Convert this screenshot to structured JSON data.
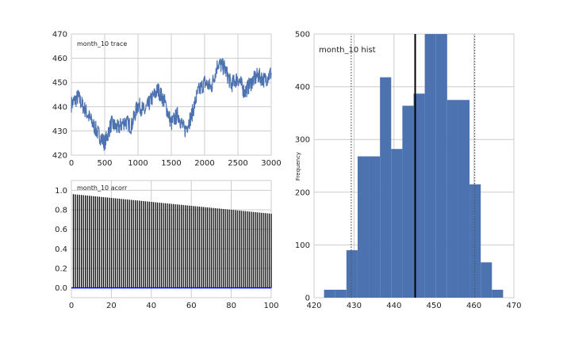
{
  "figure": {
    "background": "#ffffff",
    "grid_color": "#cccccc",
    "frame_color": "#cccccc",
    "series_color": "#4c72b0"
  },
  "chart_data": [
    {
      "id": "trace",
      "type": "line",
      "title": "month_10 trace",
      "xlim": [
        0,
        3000
      ],
      "ylim": [
        420,
        470
      ],
      "xticks": [
        "0",
        "500",
        "1000",
        "1500",
        "2000",
        "2500",
        "3000"
      ],
      "yticks": [
        "420",
        "430",
        "440",
        "450",
        "460",
        "470"
      ],
      "grid": true,
      "color": "#4c72b0",
      "x": [
        0,
        100,
        200,
        300,
        400,
        500,
        600,
        700,
        800,
        900,
        1000,
        1100,
        1200,
        1300,
        1400,
        1500,
        1600,
        1700,
        1800,
        1900,
        2000,
        2100,
        2200,
        2300,
        2400,
        2500,
        2600,
        2700,
        2800,
        2900,
        3000
      ],
      "y": [
        441,
        444,
        439,
        434,
        429,
        425,
        433,
        431,
        434,
        432,
        441,
        438,
        443,
        447,
        442,
        433,
        437,
        430,
        436,
        446,
        450,
        448,
        458,
        456,
        449,
        452,
        446,
        450,
        453,
        451,
        454
      ]
    },
    {
      "id": "acorr",
      "type": "bar",
      "title": "month_10 acorr",
      "xlim": [
        0,
        100
      ],
      "ylim": [
        -0.1,
        1.1
      ],
      "xticks": [
        "0",
        "20",
        "40",
        "60",
        "80",
        "100"
      ],
      "yticks": [
        "0.0",
        "0.2",
        "0.4",
        "0.6",
        "0.8",
        "1.0"
      ],
      "grid": true,
      "bar_color": "#000000",
      "baseline_color": "#0000ff",
      "lags_start": 1,
      "lags_end": 100,
      "acf_first": 0.96,
      "acf_last": 0.76
    },
    {
      "id": "hist",
      "type": "bar",
      "title": "month_10 hist",
      "ylabel": "Frequency",
      "xlim": [
        420,
        470
      ],
      "ylim": [
        0,
        500
      ],
      "xticks": [
        "420",
        "430",
        "440",
        "450",
        "460",
        "470"
      ],
      "yticks": [
        "0",
        "100",
        "200",
        "300",
        "400",
        "500"
      ],
      "grid": true,
      "bar_color": "#4c72b0",
      "bin_edges": [
        422.5,
        425.3,
        428.1,
        430.9,
        433.7,
        436.5,
        439.3,
        442.1,
        444.9,
        447.7,
        450.5,
        453.3,
        456.1,
        458.9,
        461.7,
        464.5,
        467.3
      ],
      "counts": [
        15,
        15,
        90,
        268,
        268,
        418,
        282,
        364,
        387,
        500,
        500,
        375,
        375,
        215,
        67,
        15
      ],
      "mean": 445.3,
      "interval": [
        429.3,
        460.2
      ],
      "mean_line_color": "#000000",
      "interval_line_color": "#555555"
    }
  ]
}
